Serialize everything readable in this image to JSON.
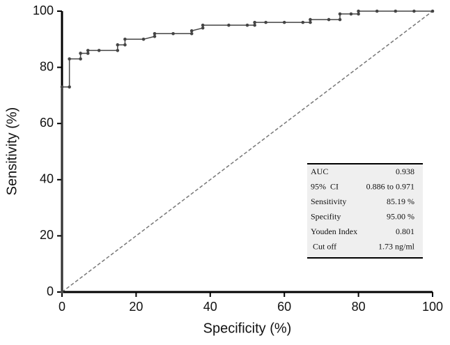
{
  "chart_data": {
    "type": "line",
    "xlabel": "Specificity (%)",
    "ylabel": "Sensitivity (%)",
    "series": [
      {
        "name": "ROC",
        "color": "#444444",
        "x": [
          0,
          0,
          2,
          2,
          5,
          5,
          7,
          7,
          10,
          15,
          15,
          17,
          17,
          22,
          25,
          25,
          30,
          35,
          35,
          38,
          38,
          45,
          50,
          52,
          52,
          55,
          60,
          65,
          67,
          67,
          72,
          75,
          75,
          78,
          80,
          80,
          85,
          90,
          95,
          100
        ],
        "values": [
          0,
          73,
          73,
          83,
          83,
          85,
          85,
          86,
          86,
          86,
          88,
          88,
          90,
          90,
          91,
          92,
          92,
          92,
          93,
          94,
          95,
          95,
          95,
          95,
          96,
          96,
          96,
          96,
          96,
          97,
          97,
          97,
          99,
          99,
          99,
          100,
          100,
          100,
          100,
          100
        ]
      }
    ],
    "reference_line": {
      "color": "#777777",
      "dashed": true
    },
    "xlim": [
      0,
      100
    ],
    "ylim": [
      0,
      100
    ],
    "xticks": [
      0,
      20,
      40,
      60,
      80,
      100
    ],
    "yticks": [
      0,
      20,
      40,
      60,
      80,
      100
    ],
    "table": {
      "rows": [
        [
          "AUC",
          "0.938"
        ],
        [
          "95%  CI",
          "0.886 to 0.971"
        ],
        [
          "Sensitivity",
          "85.19 %"
        ],
        [
          "Specifity",
          "95.00 %"
        ],
        [
          "Youden Index",
          "0.801"
        ],
        [
          " Cut off",
          "1.73 ng/ml"
        ]
      ]
    }
  }
}
